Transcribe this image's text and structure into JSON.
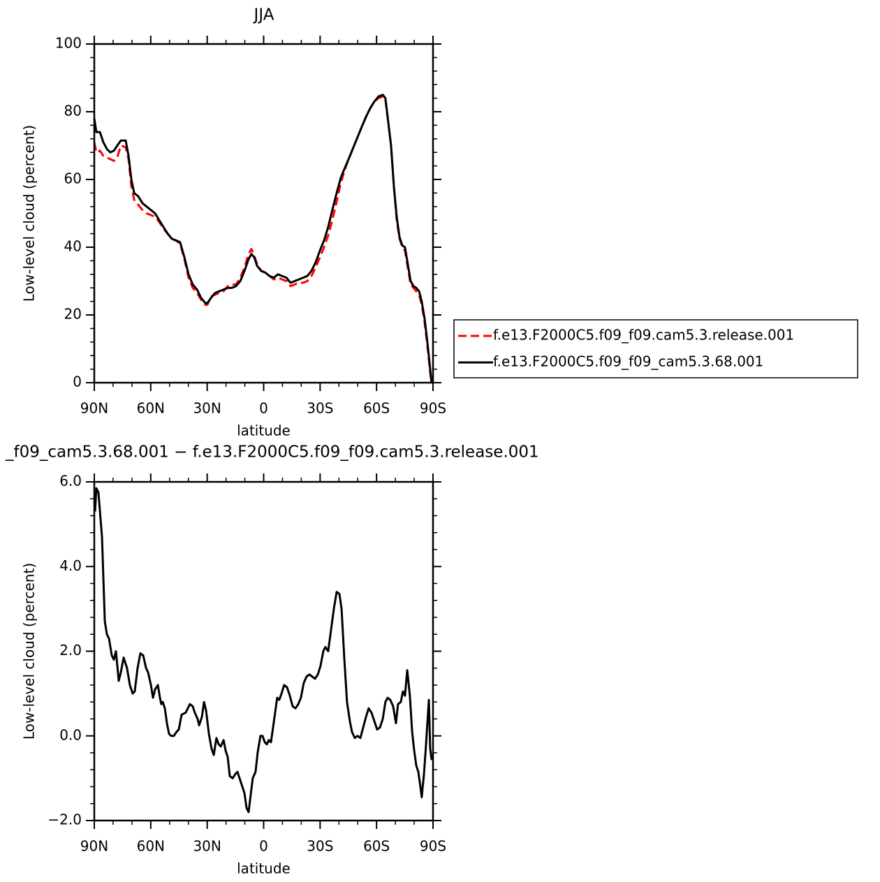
{
  "chart_data": [
    {
      "type": "line",
      "title": "JJA",
      "xlabel": "latitude",
      "ylabel": "Low-level cloud (percent)",
      "xlim": [
        90,
        -90
      ],
      "ylim": [
        0,
        100
      ],
      "xticks": [
        {
          "value": 90,
          "label": "90N"
        },
        {
          "value": 60,
          "label": "60N"
        },
        {
          "value": 30,
          "label": "30N"
        },
        0,
        {
          "value": -30,
          "label": "30S"
        },
        {
          "value": -60,
          "label": "60S"
        },
        {
          "value": -90,
          "label": "90S"
        }
      ],
      "yticks": [
        0,
        20,
        40,
        60,
        80,
        100
      ],
      "legend": "right",
      "x": [
        90.0,
        88.9,
        87.0,
        85.2,
        83.3,
        81.5,
        79.6,
        77.8,
        75.9,
        73.3,
        71.8,
        70.3,
        68.8,
        66.6,
        64.4,
        62.2,
        59.9,
        57.7,
        55.5,
        53.3,
        51.0,
        48.8,
        46.6,
        44.4,
        42.1,
        39.9,
        37.7,
        35.4,
        33.2,
        31.0,
        29.9,
        28.0,
        25.8,
        23.6,
        21.3,
        19.1,
        16.9,
        14.7,
        12.4,
        10.2,
        8.0,
        6.5,
        5.0,
        3.5,
        1.3,
        -0.9,
        -3.1,
        -5.4,
        -7.6,
        -9.8,
        -12.1,
        -14.3,
        -16.5,
        -18.7,
        -21.0,
        -23.2,
        -25.4,
        -27.6,
        -29.9,
        -32.1,
        -34.3,
        -36.5,
        -38.8,
        -41.0,
        -43.2,
        -45.5,
        -47.7,
        -49.9,
        -52.1,
        -54.4,
        -56.6,
        -58.8,
        -61.0,
        -63.3,
        -64.7,
        -66.2,
        -67.7,
        -69.2,
        -70.7,
        -72.2,
        -73.7,
        -75.1,
        -76.6,
        -78.1,
        -79.6,
        -81.1,
        -82.6,
        -84.0,
        -85.5,
        -87.0,
        -88.5,
        -89.2
      ],
      "series": [
        {
          "name": "f.e13.F2000C5.f09_f09.cam5.3.release.001",
          "color": "#ff0000",
          "style": "dashed",
          "values": [
            71,
            68,
            68.5,
            67,
            66.5,
            66,
            65.5,
            66.5,
            70,
            69.5,
            66,
            58,
            54,
            52.5,
            51,
            50,
            49.5,
            49,
            47.5,
            45.5,
            44,
            42.5,
            42,
            41,
            36.5,
            31,
            28,
            26.5,
            24.5,
            23,
            23,
            25.5,
            26,
            26.5,
            27,
            28.5,
            29,
            29,
            31,
            34,
            38,
            39.5,
            37.5,
            35,
            33,
            32.5,
            31.5,
            30.5,
            31,
            30.5,
            30,
            28.5,
            29,
            29.5,
            29.5,
            30,
            31.5,
            34,
            37,
            40,
            43.5,
            48,
            53.5,
            59,
            63,
            66.5,
            69.5,
            72.5,
            75.5,
            78.5,
            81,
            83,
            84,
            84.5,
            83.5,
            77,
            70,
            58,
            48,
            42.5,
            40,
            39,
            34,
            29,
            28,
            27,
            26,
            23,
            18,
            11,
            3,
            0
          ]
        },
        {
          "name": "f.e13.F2000C5.f09_f09_cam5.3.68.001",
          "color": "#000000",
          "style": "solid",
          "values": [
            78,
            74,
            74,
            71,
            69,
            68,
            68.5,
            70,
            71.5,
            71.5,
            67,
            60,
            56,
            55,
            53,
            52,
            51,
            50,
            48,
            46,
            44,
            42.5,
            42,
            41.5,
            37,
            32,
            29,
            27.5,
            25,
            23.5,
            23.5,
            25,
            26.5,
            27,
            27.5,
            28,
            28,
            28.5,
            30,
            33,
            36.5,
            38,
            37,
            34.5,
            33,
            32.5,
            31.5,
            31,
            32,
            31.5,
            31,
            29.5,
            30,
            30.5,
            31,
            31.5,
            33,
            35.5,
            39,
            42,
            46,
            51,
            56,
            60.5,
            63.5,
            66.5,
            69.5,
            72.5,
            75.5,
            78.5,
            81,
            83,
            84.5,
            85,
            84,
            77,
            70,
            58,
            49,
            43,
            40.5,
            40,
            35,
            30,
            28.5,
            28,
            27,
            24,
            19,
            12,
            4,
            0
          ]
        }
      ]
    },
    {
      "type": "line",
      "title": "_f09_cam5.3.68.001 − f.e13.F2000C5.f09_f09.cam5.3.release.001",
      "xlabel": "latitude",
      "ylabel": "Low-level cloud (percent)",
      "xlim": [
        90,
        -90
      ],
      "ylim": [
        -2,
        6
      ],
      "xticks": [
        {
          "value": 90,
          "label": "90N"
        },
        {
          "value": 60,
          "label": "60N"
        },
        {
          "value": 30,
          "label": "30N"
        },
        0,
        {
          "value": -30,
          "label": "30S"
        },
        {
          "value": -60,
          "label": "60S"
        },
        {
          "value": -90,
          "label": "90S"
        }
      ],
      "yticks": [
        {
          "value": -2,
          "label": "−2.0"
        },
        {
          "value": 0,
          "label": "0.0"
        },
        {
          "value": 2,
          "label": "2.0"
        },
        {
          "value": 4,
          "label": "4.0"
        },
        {
          "value": 6,
          "label": "6.0"
        }
      ],
      "x": [
        89.6,
        88.9,
        87.8,
        85.9,
        84.4,
        83.3,
        82.2,
        80.7,
        79.6,
        78.5,
        77.0,
        75.9,
        74.4,
        72.6,
        71.1,
        69.6,
        68.5,
        67.0,
        65.5,
        64.0,
        62.5,
        61.4,
        59.9,
        58.8,
        57.7,
        56.2,
        55.1,
        54.4,
        53.6,
        52.5,
        51.4,
        50.3,
        49.2,
        47.7,
        46.2,
        45.1,
        43.6,
        41.4,
        39.2,
        37.7,
        36.6,
        35.1,
        34.3,
        32.8,
        31.7,
        30.6,
        29.1,
        27.7,
        26.5,
        25.1,
        23.9,
        22.8,
        21.3,
        20.2,
        19.1,
        18.0,
        16.5,
        15.0,
        13.9,
        12.8,
        11.7,
        10.2,
        9.1,
        8.0,
        6.9,
        5.8,
        4.3,
        3.2,
        1.7,
        0.6,
        -0.6,
        -1.7,
        -2.8,
        -3.9,
        -5.0,
        -6.1,
        -7.2,
        -8.3,
        -9.5,
        -10.9,
        -12.4,
        -13.9,
        -15.4,
        -16.9,
        -18.4,
        -19.8,
        -21.3,
        -22.8,
        -24.3,
        -25.8,
        -27.3,
        -28.8,
        -30.2,
        -31.7,
        -32.8,
        -34.3,
        -35.8,
        -37.3,
        -38.8,
        -40.3,
        -41.4,
        -42.9,
        -44.3,
        -45.8,
        -46.9,
        -48.4,
        -49.9,
        -51.4,
        -52.9,
        -54.4,
        -55.8,
        -57.3,
        -58.8,
        -60.3,
        -61.8,
        -63.3,
        -64.7,
        -65.9,
        -67.3,
        -68.8,
        -70.3,
        -71.4,
        -72.9,
        -74.0,
        -75.1,
        -76.3,
        -77.7,
        -78.9,
        -80.0,
        -81.1,
        -82.2,
        -83.3,
        -84.0,
        -85.2,
        -86.3,
        -87.0,
        -87.8,
        -88.5,
        -89.2,
        -90.0
      ],
      "series": [
        {
          "color": "#000000",
          "style": "solid",
          "values": [
            5.3,
            5.85,
            5.75,
            4.7,
            2.7,
            2.4,
            2.3,
            1.9,
            1.8,
            2.0,
            1.3,
            1.5,
            1.85,
            1.6,
            1.2,
            1.0,
            1.05,
            1.6,
            1.95,
            1.9,
            1.6,
            1.5,
            1.2,
            0.9,
            1.1,
            1.2,
            0.9,
            0.75,
            0.8,
            0.65,
            0.3,
            0.05,
            0,
            0,
            0.1,
            0.15,
            0.5,
            0.55,
            0.75,
            0.7,
            0.55,
            0.4,
            0.25,
            0.45,
            0.8,
            0.6,
            0.05,
            -0.3,
            -0.45,
            -0.05,
            -0.2,
            -0.25,
            -0.1,
            -0.35,
            -0.5,
            -0.95,
            -1.0,
            -0.9,
            -0.85,
            -1.0,
            -1.15,
            -1.35,
            -1.7,
            -1.8,
            -1.4,
            -1.0,
            -0.85,
            -0.4,
            0.0,
            0.0,
            -0.15,
            -0.2,
            -0.1,
            -0.15,
            0.2,
            0.55,
            0.9,
            0.85,
            1.0,
            1.2,
            1.15,
            0.95,
            0.7,
            0.65,
            0.75,
            0.9,
            1.25,
            1.4,
            1.45,
            1.4,
            1.35,
            1.45,
            1.65,
            2.0,
            2.1,
            2.0,
            2.5,
            3.0,
            3.4,
            3.35,
            3.0,
            1.8,
            0.8,
            0.35,
            0.1,
            -0.05,
            0.0,
            -0.05,
            0.2,
            0.45,
            0.65,
            0.55,
            0.35,
            0.15,
            0.2,
            0.4,
            0.8,
            0.9,
            0.85,
            0.7,
            0.3,
            0.75,
            0.8,
            1.05,
            0.95,
            1.55,
            0.95,
            0.1,
            -0.35,
            -0.7,
            -0.85,
            -1.2,
            -1.45,
            -0.9,
            -0.2,
            0.3,
            0.85,
            -0.3,
            -0.55,
            -0.45
          ]
        }
      ]
    }
  ]
}
